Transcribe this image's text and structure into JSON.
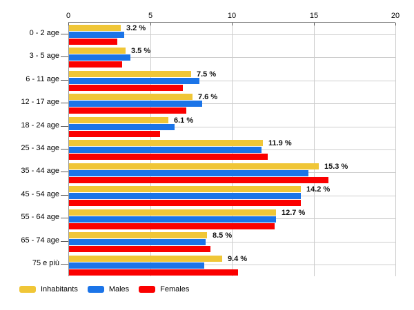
{
  "chart_data": {
    "type": "bar",
    "orientation": "horizontal",
    "categories": [
      "0 - 2 age",
      "3 - 5 age",
      "6 - 11 age",
      "12 - 17 age",
      "18 - 24 age",
      "25 - 34 age",
      "35 - 44 age",
      "45 - 54 age",
      "55 - 64 age",
      "65 - 74 age",
      "75 e più"
    ],
    "series": [
      {
        "name": "Inhabitants",
        "color": "#F0C637",
        "values": [
          3.2,
          3.5,
          7.5,
          7.6,
          6.1,
          11.9,
          15.3,
          14.2,
          12.7,
          8.5,
          9.4
        ],
        "value_labels": [
          "3.2 %",
          "3.5 %",
          "7.5 %",
          "7.6 %",
          "6.1 %",
          "11.9 %",
          "15.3 %",
          "14.2 %",
          "12.7 %",
          "8.5 %",
          "9.4 %"
        ]
      },
      {
        "name": "Males",
        "color": "#1B74E8",
        "values": [
          3.4,
          3.8,
          8.0,
          8.2,
          6.5,
          11.8,
          14.7,
          14.2,
          12.7,
          8.4,
          8.3
        ]
      },
      {
        "name": "Females",
        "color": "#FB0000",
        "values": [
          3.0,
          3.3,
          7.0,
          7.2,
          5.6,
          12.2,
          15.9,
          14.2,
          12.6,
          8.7,
          10.4
        ]
      }
    ],
    "xlim": [
      0,
      20
    ],
    "x_ticks": [
      "0",
      "5",
      "10",
      "15",
      "20"
    ],
    "grid": true,
    "legend_position": "bottom-left"
  },
  "colors": {
    "grid": "#cccccc",
    "axis_line": "#888888",
    "tick": "#555555",
    "label_text": "#000000",
    "value_text": "#111111"
  }
}
